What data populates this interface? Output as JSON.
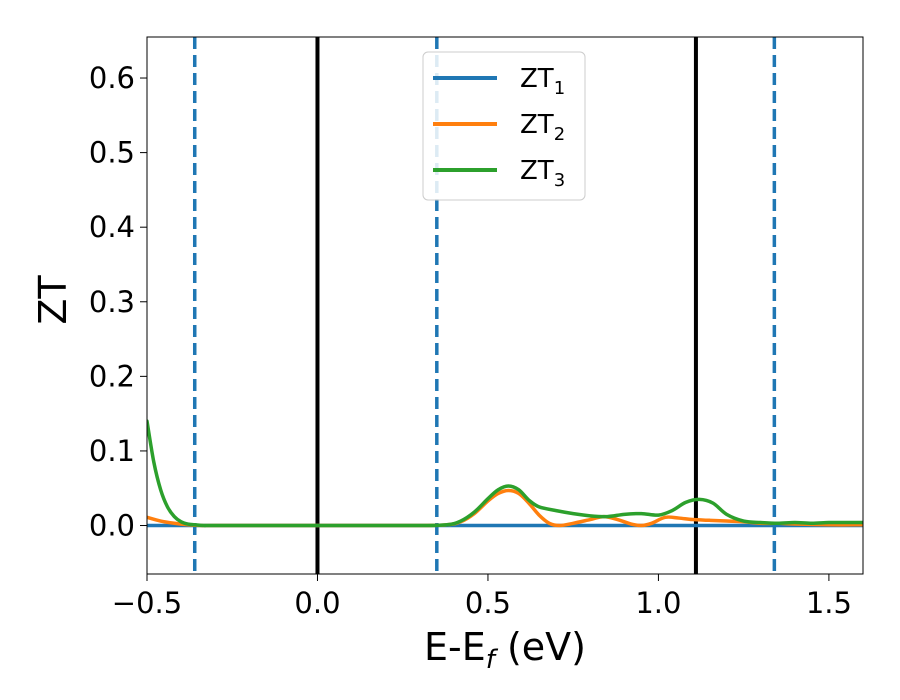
{
  "chart_data": {
    "type": "line",
    "xlabel_main": "E-E",
    "xlabel_sub": "f",
    "xlabel_unit": " (eV)",
    "ylabel": "ZT",
    "xlim": [
      -0.5,
      1.6
    ],
    "ylim": [
      -0.065,
      0.655
    ],
    "xticks": [
      -0.5,
      0.0,
      0.5,
      1.0,
      1.5
    ],
    "xtick_labels": [
      "−0.5",
      "0.0",
      "0.5",
      "1.0",
      "1.5"
    ],
    "yticks": [
      0.0,
      0.1,
      0.2,
      0.3,
      0.4,
      0.5,
      0.6
    ],
    "ytick_labels": [
      "0.0",
      "0.1",
      "0.2",
      "0.3",
      "0.4",
      "0.5",
      "0.6"
    ],
    "grid": false,
    "legend_position": "top-center",
    "vlines": [
      {
        "x": -0.36,
        "style": "dashed",
        "color": "#1f77b4"
      },
      {
        "x": 0.0,
        "style": "solid",
        "color": "#000000"
      },
      {
        "x": 0.35,
        "style": "dashed",
        "color": "#1f77b4"
      },
      {
        "x": 1.11,
        "style": "solid",
        "color": "#000000"
      },
      {
        "x": 1.34,
        "style": "dashed",
        "color": "#1f77b4"
      }
    ],
    "series": [
      {
        "name": "ZT",
        "name_sub": "1",
        "color": "#1f77b4",
        "x": [
          -0.5,
          0.0,
          0.5,
          1.0,
          1.6
        ],
        "y": [
          0.0,
          0.0,
          0.0,
          0.0,
          0.0
        ]
      },
      {
        "name": "ZT",
        "name_sub": "2",
        "color": "#ff7f0e",
        "x": [
          -0.5,
          -0.46,
          -0.42,
          -0.38,
          -0.34,
          -0.3,
          0.0,
          0.3,
          0.38,
          0.42,
          0.46,
          0.5,
          0.53,
          0.56,
          0.59,
          0.62,
          0.65,
          0.68,
          0.71,
          0.75,
          0.8,
          0.84,
          0.88,
          0.92,
          0.95,
          0.98,
          1.02,
          1.06,
          1.1,
          1.15,
          1.2,
          1.25,
          1.3,
          1.35,
          1.4,
          1.5,
          1.6
        ],
        "y": [
          0.011,
          0.006,
          0.003,
          0.001,
          0.0,
          0.0,
          0.0,
          0.0,
          0.001,
          0.005,
          0.016,
          0.033,
          0.043,
          0.047,
          0.043,
          0.03,
          0.014,
          0.003,
          0.0,
          0.003,
          0.008,
          0.012,
          0.008,
          0.002,
          0.0,
          0.003,
          0.011,
          0.01,
          0.008,
          0.007,
          0.006,
          0.005,
          0.003,
          0.003,
          0.002,
          0.001,
          0.001
        ]
      },
      {
        "name": "ZT",
        "name_sub": "3",
        "color": "#2ca02c",
        "x": [
          -0.5,
          -0.48,
          -0.46,
          -0.44,
          -0.42,
          -0.4,
          -0.38,
          -0.36,
          -0.33,
          -0.3,
          0.0,
          0.3,
          0.38,
          0.42,
          0.46,
          0.5,
          0.53,
          0.56,
          0.59,
          0.62,
          0.65,
          0.7,
          0.75,
          0.8,
          0.85,
          0.9,
          0.95,
          1.0,
          1.04,
          1.08,
          1.12,
          1.16,
          1.2,
          1.25,
          1.3,
          1.35,
          1.4,
          1.45,
          1.5,
          1.55,
          1.6
        ],
        "y": [
          0.14,
          0.085,
          0.048,
          0.025,
          0.012,
          0.005,
          0.002,
          0.001,
          0.0,
          0.0,
          0.0,
          0.0,
          0.001,
          0.006,
          0.018,
          0.036,
          0.048,
          0.053,
          0.048,
          0.034,
          0.025,
          0.02,
          0.016,
          0.013,
          0.012,
          0.015,
          0.016,
          0.014,
          0.02,
          0.031,
          0.035,
          0.03,
          0.015,
          0.006,
          0.004,
          0.003,
          0.004,
          0.003,
          0.004,
          0.004,
          0.004
        ]
      }
    ]
  }
}
